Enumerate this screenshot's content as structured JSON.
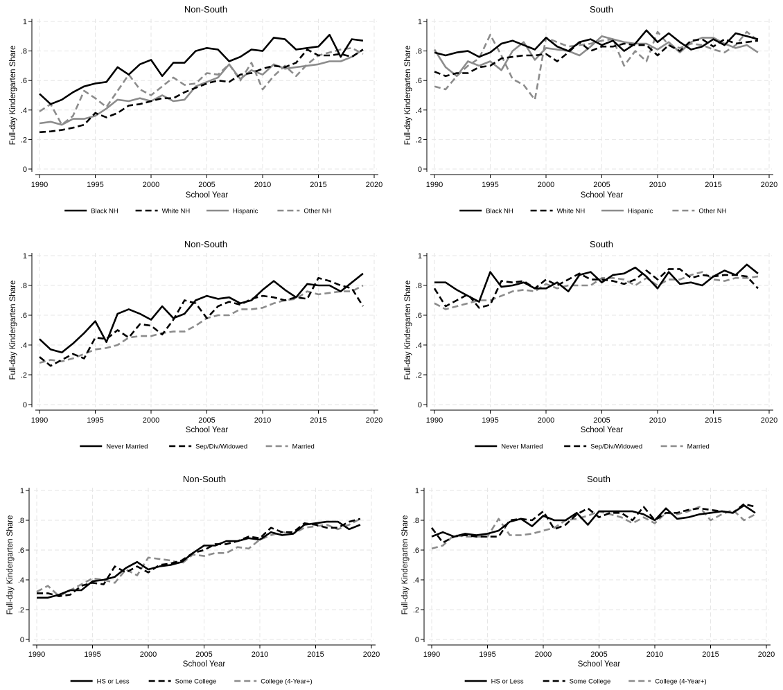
{
  "colors": {
    "black": "#000000",
    "gray": "#8c8c8c",
    "grid": "#e6e6e6",
    "background": "#ffffff"
  },
  "chart_data": [
    {
      "type": "line",
      "title": "Non-South",
      "xlabel": "School Year",
      "ylabel": "Full-day Kindergarten Share",
      "xlim": [
        1990,
        2020
      ],
      "ylim": [
        0,
        1
      ],
      "xticks": [
        "1990",
        "1995",
        "2000",
        "2005",
        "2010",
        "2015",
        "2020"
      ],
      "yticks": [
        "0",
        ".2",
        ".4",
        ".6",
        ".8",
        "1"
      ],
      "grid": true,
      "legend_position": "bottom",
      "x": [
        1990,
        1991,
        1992,
        1993,
        1994,
        1995,
        1996,
        1997,
        1998,
        1999,
        2000,
        2001,
        2002,
        2003,
        2004,
        2005,
        2006,
        2007,
        2008,
        2009,
        2010,
        2011,
        2012,
        2013,
        2014,
        2015,
        2016,
        2017,
        2018,
        2019
      ],
      "series": [
        {
          "name": "Black NH",
          "color": "#000000",
          "dash": "solid",
          "values": [
            0.51,
            0.44,
            0.47,
            0.52,
            0.56,
            0.58,
            0.59,
            0.69,
            0.64,
            0.71,
            0.74,
            0.63,
            0.72,
            0.72,
            0.8,
            0.82,
            0.81,
            0.73,
            0.76,
            0.81,
            0.8,
            0.89,
            0.88,
            0.81,
            0.82,
            0.83,
            0.91,
            0.76,
            0.88,
            0.87
          ]
        },
        {
          "name": "White NH",
          "color": "#000000",
          "dash": "dashed",
          "values": [
            0.25,
            0.255,
            0.265,
            0.28,
            0.3,
            0.38,
            0.35,
            0.38,
            0.43,
            0.44,
            0.46,
            0.48,
            0.48,
            0.52,
            0.55,
            0.58,
            0.6,
            0.59,
            0.64,
            0.65,
            0.68,
            0.7,
            0.69,
            0.72,
            0.81,
            0.77,
            0.77,
            0.78,
            0.76,
            0.81
          ]
        },
        {
          "name": "Hispanic",
          "color": "#8c8c8c",
          "dash": "solid",
          "values": [
            0.31,
            0.32,
            0.3,
            0.34,
            0.34,
            0.36,
            0.41,
            0.47,
            0.46,
            0.48,
            0.46,
            0.5,
            0.46,
            0.47,
            0.56,
            0.59,
            0.62,
            0.71,
            0.61,
            0.67,
            0.64,
            0.71,
            0.68,
            0.69,
            0.7,
            0.71,
            0.73,
            0.73,
            0.76,
            0.81
          ]
        },
        {
          "name": "Other NH",
          "color": "#8c8c8c",
          "dash": "dashed",
          "values": [
            0.39,
            0.44,
            0.3,
            0.36,
            0.53,
            0.48,
            0.42,
            0.53,
            0.64,
            0.54,
            0.5,
            0.56,
            0.62,
            0.57,
            0.58,
            0.65,
            0.64,
            0.71,
            0.6,
            0.72,
            0.54,
            0.63,
            0.7,
            0.63,
            0.71,
            0.77,
            0.79,
            0.81,
            0.82,
            0.78
          ]
        }
      ]
    },
    {
      "type": "line",
      "title": "South",
      "xlabel": "School Year",
      "ylabel": "Full-day Kindergarten Share",
      "xlim": [
        1990,
        2020
      ],
      "ylim": [
        0,
        1
      ],
      "xticks": [
        "1990",
        "1995",
        "2000",
        "2005",
        "2010",
        "2015",
        "2020"
      ],
      "yticks": [
        "0",
        ".2",
        ".4",
        ".6",
        ".8",
        "1"
      ],
      "grid": true,
      "legend_position": "bottom",
      "x": [
        1990,
        1991,
        1992,
        1993,
        1994,
        1995,
        1996,
        1997,
        1998,
        1999,
        2000,
        2001,
        2002,
        2003,
        2004,
        2005,
        2006,
        2007,
        2008,
        2009,
        2010,
        2011,
        2012,
        2013,
        2014,
        2015,
        2016,
        2017,
        2018,
        2019
      ],
      "series": [
        {
          "name": "Black NH",
          "color": "#000000",
          "dash": "solid",
          "values": [
            0.79,
            0.77,
            0.79,
            0.8,
            0.76,
            0.79,
            0.85,
            0.87,
            0.84,
            0.81,
            0.89,
            0.83,
            0.8,
            0.86,
            0.88,
            0.84,
            0.87,
            0.8,
            0.85,
            0.94,
            0.86,
            0.92,
            0.86,
            0.81,
            0.83,
            0.88,
            0.84,
            0.92,
            0.9,
            0.88
          ]
        },
        {
          "name": "White NH",
          "color": "#000000",
          "dash": "dashed",
          "values": [
            0.66,
            0.63,
            0.65,
            0.65,
            0.69,
            0.7,
            0.75,
            0.76,
            0.77,
            0.77,
            0.78,
            0.73,
            0.79,
            0.86,
            0.8,
            0.83,
            0.83,
            0.85,
            0.84,
            0.84,
            0.77,
            0.84,
            0.8,
            0.87,
            0.88,
            0.83,
            0.88,
            0.85,
            0.86,
            0.87
          ]
        },
        {
          "name": "Hispanic",
          "color": "#8c8c8c",
          "dash": "solid",
          "values": [
            0.81,
            0.69,
            0.63,
            0.73,
            0.7,
            0.73,
            0.67,
            0.8,
            0.86,
            0.74,
            0.82,
            0.81,
            0.8,
            0.77,
            0.83,
            0.9,
            0.88,
            0.86,
            0.85,
            0.85,
            0.81,
            0.86,
            0.79,
            0.86,
            0.89,
            0.89,
            0.85,
            0.82,
            0.84,
            0.79
          ]
        },
        {
          "name": "Other NH",
          "color": "#8c8c8c",
          "dash": "dashed",
          "values": [
            0.56,
            0.54,
            0.63,
            0.7,
            0.75,
            0.91,
            0.77,
            0.61,
            0.57,
            0.47,
            0.89,
            0.86,
            0.83,
            0.84,
            0.85,
            0.87,
            0.88,
            0.7,
            0.8,
            0.73,
            0.93,
            0.84,
            0.82,
            0.85,
            0.84,
            0.81,
            0.79,
            0.84,
            0.93,
            0.87
          ]
        }
      ]
    },
    {
      "type": "line",
      "title": "Non-South",
      "xlabel": "School Year",
      "ylabel": "Full-day Kindergarten Share",
      "xlim": [
        1990,
        2020
      ],
      "ylim": [
        0,
        1
      ],
      "xticks": [
        "1990",
        "1995",
        "2000",
        "2005",
        "2010",
        "2015",
        "2020"
      ],
      "yticks": [
        "0",
        ".2",
        ".4",
        ".6",
        ".8",
        "1"
      ],
      "grid": true,
      "legend_position": "bottom",
      "x": [
        1990,
        1991,
        1992,
        1993,
        1994,
        1995,
        1996,
        1997,
        1998,
        1999,
        2000,
        2001,
        2002,
        2003,
        2004,
        2005,
        2006,
        2007,
        2008,
        2009,
        2010,
        2011,
        2012,
        2013,
        2014,
        2015,
        2016,
        2017,
        2018,
        2019
      ],
      "series": [
        {
          "name": "Never Married",
          "color": "#000000",
          "dash": "solid",
          "values": [
            0.44,
            0.37,
            0.35,
            0.41,
            0.48,
            0.56,
            0.42,
            0.61,
            0.64,
            0.61,
            0.57,
            0.66,
            0.58,
            0.61,
            0.7,
            0.73,
            0.71,
            0.72,
            0.68,
            0.7,
            0.77,
            0.83,
            0.77,
            0.72,
            0.81,
            0.8,
            0.8,
            0.76,
            0.82,
            0.88
          ]
        },
        {
          "name": "Sep/Div/Widowed",
          "color": "#000000",
          "dash": "dashed",
          "values": [
            0.32,
            0.26,
            0.3,
            0.34,
            0.31,
            0.45,
            0.44,
            0.5,
            0.45,
            0.54,
            0.53,
            0.47,
            0.57,
            0.7,
            0.68,
            0.58,
            0.66,
            0.69,
            0.67,
            0.71,
            0.73,
            0.72,
            0.7,
            0.72,
            0.71,
            0.85,
            0.83,
            0.8,
            0.78,
            0.66
          ]
        },
        {
          "name": "Married",
          "color": "#8c8c8c",
          "dash": "dashed",
          "values": [
            0.28,
            0.3,
            0.29,
            0.31,
            0.34,
            0.37,
            0.38,
            0.4,
            0.45,
            0.46,
            0.46,
            0.48,
            0.49,
            0.49,
            0.53,
            0.58,
            0.6,
            0.6,
            0.64,
            0.64,
            0.65,
            0.68,
            0.7,
            0.71,
            0.76,
            0.74,
            0.75,
            0.76,
            0.76,
            0.8
          ]
        }
      ]
    },
    {
      "type": "line",
      "title": "South",
      "xlabel": "School Year",
      "ylabel": "Full-day Kindergarten Share",
      "xlim": [
        1990,
        2020
      ],
      "ylim": [
        0,
        1
      ],
      "xticks": [
        "1990",
        "1995",
        "2000",
        "2005",
        "2010",
        "2015",
        "2020"
      ],
      "yticks": [
        "0",
        ".2",
        ".4",
        ".6",
        ".8",
        "1"
      ],
      "grid": true,
      "legend_position": "bottom",
      "x": [
        1990,
        1991,
        1992,
        1993,
        1994,
        1995,
        1996,
        1997,
        1998,
        1999,
        2000,
        2001,
        2002,
        2003,
        2004,
        2005,
        2006,
        2007,
        2008,
        2009,
        2010,
        2011,
        2012,
        2013,
        2014,
        2015,
        2016,
        2017,
        2018,
        2019
      ],
      "series": [
        {
          "name": "Never Married",
          "color": "#000000",
          "dash": "solid",
          "values": [
            0.82,
            0.82,
            0.77,
            0.73,
            0.69,
            0.89,
            0.79,
            0.8,
            0.82,
            0.78,
            0.78,
            0.82,
            0.76,
            0.87,
            0.89,
            0.82,
            0.87,
            0.88,
            0.92,
            0.86,
            0.78,
            0.89,
            0.81,
            0.82,
            0.8,
            0.86,
            0.9,
            0.87,
            0.94,
            0.88
          ]
        },
        {
          "name": "Sep/Div/Widowed",
          "color": "#000000",
          "dash": "dashed",
          "values": [
            0.78,
            0.66,
            0.7,
            0.74,
            0.65,
            0.67,
            0.83,
            0.82,
            0.83,
            0.78,
            0.84,
            0.8,
            0.84,
            0.88,
            0.84,
            0.84,
            0.83,
            0.81,
            0.84,
            0.9,
            0.84,
            0.91,
            0.91,
            0.85,
            0.87,
            0.86,
            0.87,
            0.87,
            0.86,
            0.78
          ]
        },
        {
          "name": "Married",
          "color": "#8c8c8c",
          "dash": "dashed",
          "values": [
            0.68,
            0.64,
            0.66,
            0.68,
            0.7,
            0.7,
            0.73,
            0.76,
            0.77,
            0.76,
            0.81,
            0.78,
            0.8,
            0.8,
            0.8,
            0.85,
            0.85,
            0.84,
            0.8,
            0.85,
            0.8,
            0.84,
            0.84,
            0.87,
            0.89,
            0.84,
            0.83,
            0.85,
            0.85,
            0.86
          ]
        }
      ]
    },
    {
      "type": "line",
      "title": "Non-South",
      "xlabel": "School Year",
      "ylabel": "Full-day Kindergarten Share",
      "xlim": [
        1990,
        2020
      ],
      "ylim": [
        0,
        1
      ],
      "xticks": [
        "1990",
        "1995",
        "2000",
        "2005",
        "2010",
        "2015",
        "2020"
      ],
      "yticks": [
        "0",
        ".2",
        ".4",
        ".6",
        ".8",
        "1"
      ],
      "grid": true,
      "legend_position": "bottom",
      "x": [
        1990,
        1991,
        1992,
        1993,
        1994,
        1995,
        1996,
        1997,
        1998,
        1999,
        2000,
        2001,
        2002,
        2003,
        2004,
        2005,
        2006,
        2007,
        2008,
        2009,
        2010,
        2011,
        2012,
        2013,
        2014,
        2015,
        2016,
        2017,
        2018,
        2019
      ],
      "series": [
        {
          "name": "HS or Less",
          "color": "#000000",
          "dash": "solid",
          "values": [
            0.28,
            0.28,
            0.3,
            0.33,
            0.33,
            0.39,
            0.4,
            0.42,
            0.48,
            0.52,
            0.47,
            0.49,
            0.5,
            0.52,
            0.58,
            0.63,
            0.63,
            0.66,
            0.66,
            0.68,
            0.67,
            0.72,
            0.7,
            0.71,
            0.77,
            0.78,
            0.79,
            0.79,
            0.74,
            0.77
          ]
        },
        {
          "name": "Some College",
          "color": "#000000",
          "dash": "dashed",
          "values": [
            0.31,
            0.31,
            0.29,
            0.3,
            0.36,
            0.38,
            0.37,
            0.49,
            0.45,
            0.49,
            0.45,
            0.5,
            0.51,
            0.53,
            0.58,
            0.6,
            0.64,
            0.64,
            0.66,
            0.69,
            0.68,
            0.75,
            0.72,
            0.72,
            0.78,
            0.77,
            0.75,
            0.75,
            0.79,
            0.81
          ]
        },
        {
          "name": "College (4-Year+)",
          "color": "#8c8c8c",
          "dash": "dashed",
          "values": [
            0.32,
            0.36,
            0.29,
            0.33,
            0.37,
            0.41,
            0.4,
            0.38,
            0.47,
            0.43,
            0.55,
            0.54,
            0.53,
            0.51,
            0.57,
            0.56,
            0.58,
            0.58,
            0.62,
            0.61,
            0.67,
            0.7,
            0.72,
            0.71,
            0.75,
            0.76,
            0.77,
            0.74,
            0.77,
            0.81
          ]
        }
      ]
    },
    {
      "type": "line",
      "title": "South",
      "xlabel": "School Year",
      "ylabel": "Full-day Kindergarten Share",
      "xlim": [
        1990,
        2020
      ],
      "ylim": [
        0,
        1
      ],
      "xticks": [
        "1990",
        "1995",
        "2000",
        "2005",
        "2010",
        "2015",
        "2020"
      ],
      "yticks": [
        "0",
        ".2",
        ".4",
        ".6",
        ".8",
        "1"
      ],
      "grid": true,
      "legend_position": "bottom",
      "x": [
        1990,
        1991,
        1992,
        1993,
        1994,
        1995,
        1996,
        1997,
        1998,
        1999,
        2000,
        2001,
        2002,
        2003,
        2004,
        2005,
        2006,
        2007,
        2008,
        2009,
        2010,
        2011,
        2012,
        2013,
        2014,
        2015,
        2016,
        2017,
        2018,
        2019
      ],
      "series": [
        {
          "name": "HS or Less",
          "color": "#000000",
          "dash": "solid",
          "values": [
            0.69,
            0.72,
            0.69,
            0.71,
            0.7,
            0.71,
            0.73,
            0.79,
            0.81,
            0.76,
            0.83,
            0.8,
            0.8,
            0.85,
            0.77,
            0.86,
            0.86,
            0.86,
            0.86,
            0.84,
            0.8,
            0.88,
            0.81,
            0.82,
            0.84,
            0.85,
            0.86,
            0.85,
            0.9,
            0.85
          ]
        },
        {
          "name": "Some College",
          "color": "#000000",
          "dash": "dashed",
          "values": [
            0.75,
            0.65,
            0.69,
            0.7,
            0.69,
            0.69,
            0.69,
            0.8,
            0.81,
            0.8,
            0.86,
            0.74,
            0.77,
            0.84,
            0.88,
            0.82,
            0.85,
            0.85,
            0.8,
            0.89,
            0.8,
            0.85,
            0.85,
            0.87,
            0.88,
            0.87,
            0.86,
            0.85,
            0.91,
            0.89
          ]
        },
        {
          "name": "College (4-Year+)",
          "color": "#8c8c8c",
          "dash": "dashed",
          "values": [
            0.61,
            0.63,
            0.7,
            0.69,
            0.69,
            0.69,
            0.81,
            0.7,
            0.7,
            0.71,
            0.73,
            0.75,
            0.8,
            0.81,
            0.83,
            0.86,
            0.84,
            0.82,
            0.78,
            0.82,
            0.78,
            0.85,
            0.84,
            0.86,
            0.89,
            0.8,
            0.84,
            0.87,
            0.8,
            0.84
          ]
        }
      ]
    }
  ]
}
